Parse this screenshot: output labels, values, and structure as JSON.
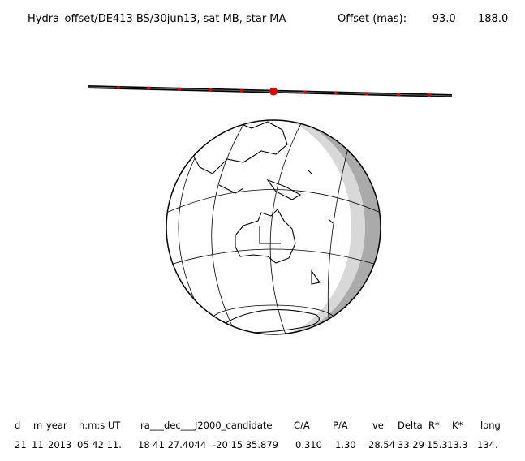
{
  "header": {
    "title": "Hydra–offset/DE413 BS/30jun13, sat MB, star MA",
    "offset_label": "Offset (mas):",
    "offset_x": "-93.0",
    "offset_y": "188.0"
  },
  "table": {
    "columns": [
      "d",
      "m",
      "year",
      "h:m:s UT",
      "ra___dec___J2000_candidate",
      "C/A",
      "P/A",
      "vel",
      "Delta",
      "R*",
      "K*",
      "long"
    ],
    "rows": [
      [
        "21",
        "11",
        "2013",
        "05 42 11.",
        "18 41 27.4044",
        "-20 15 35.879",
        "0.310",
        "1.30",
        "28.54",
        "33.29",
        "15.3",
        "13.3",
        "134."
      ]
    ]
  }
}
